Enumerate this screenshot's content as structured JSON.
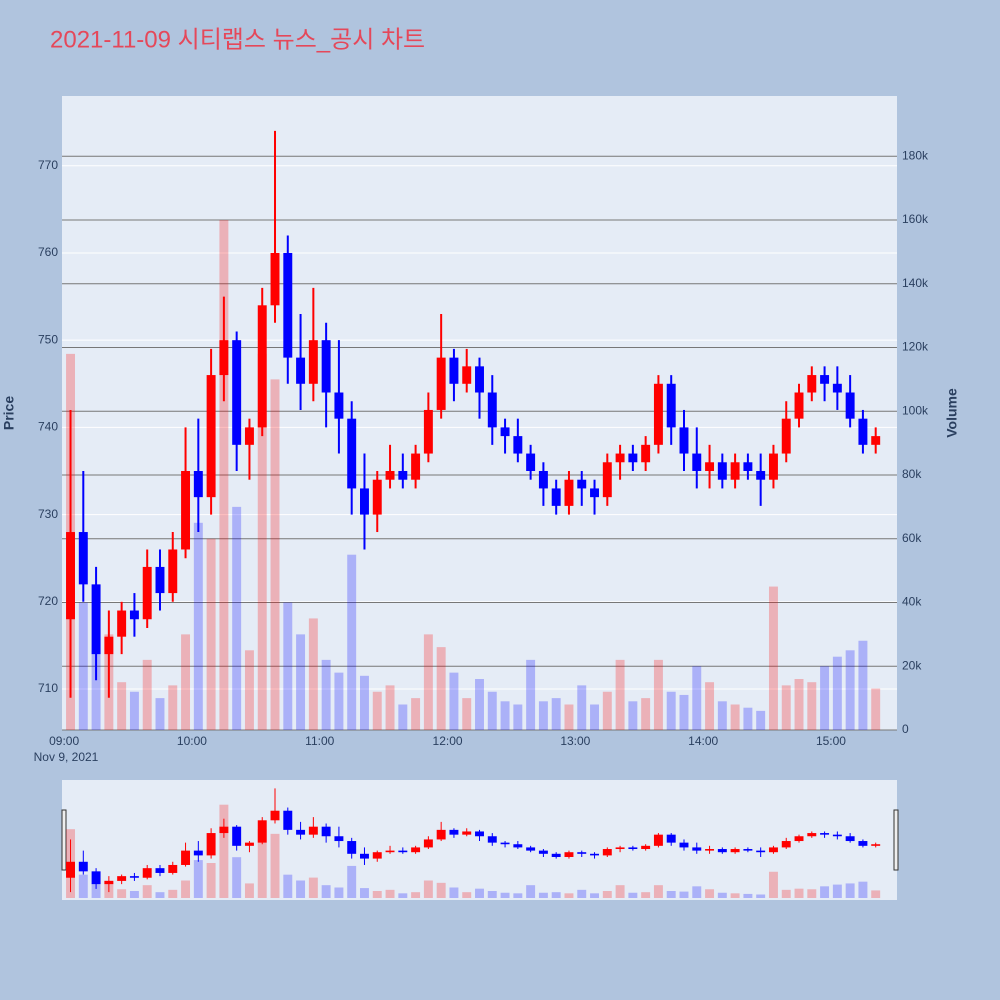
{
  "chart_data": {
    "type": "candlestick",
    "title": "2021-11-09 시티랩스 뉴스_공시 차트",
    "title_color": "#e5485a",
    "y_title": "Price",
    "y2_title": "Volume",
    "x_date_label": "Nov 9, 2021",
    "xlim": [
      "08:59",
      "15:31"
    ],
    "xticks": [
      "09:00",
      "10:00",
      "11:00",
      "12:00",
      "13:00",
      "14:00",
      "15:00"
    ],
    "ylim": [
      705.3,
      778.0
    ],
    "yticks": [
      710,
      720,
      730,
      740,
      750,
      760,
      770
    ],
    "y2lim": [
      0,
      198900
    ],
    "y2ticks": [
      0,
      {
        "value": 20000,
        "label": "20k"
      },
      {
        "value": 40000,
        "label": "40k"
      },
      {
        "value": 60000,
        "label": "60k"
      },
      {
        "value": 80000,
        "label": "80k"
      },
      {
        "value": 100000,
        "label": "100k"
      },
      {
        "value": 120000,
        "label": "120k"
      },
      {
        "value": 140000,
        "label": "140k"
      },
      {
        "value": 160000,
        "label": "160k"
      },
      {
        "value": 180000,
        "label": "180k"
      }
    ],
    "increasing_color": "#ff0000",
    "decreasing_color": "#0000ff",
    "range_slider": true,
    "x": [
      "09:00",
      "09:06",
      "09:12",
      "09:18",
      "09:24",
      "09:30",
      "09:36",
      "09:42",
      "09:48",
      "09:54",
      "10:00",
      "10:06",
      "10:12",
      "10:18",
      "10:24",
      "10:30",
      "10:36",
      "10:42",
      "10:48",
      "10:54",
      "11:00",
      "11:06",
      "11:12",
      "11:18",
      "11:24",
      "11:30",
      "11:36",
      "11:42",
      "11:48",
      "11:54",
      "12:00",
      "12:06",
      "12:12",
      "12:18",
      "12:24",
      "12:30",
      "12:36",
      "12:42",
      "12:48",
      "12:54",
      "13:00",
      "13:06",
      "13:12",
      "13:18",
      "13:24",
      "13:30",
      "13:36",
      "13:42",
      "13:48",
      "13:54",
      "14:00",
      "14:06",
      "14:12",
      "14:18",
      "14:24",
      "14:30",
      "14:36",
      "14:42",
      "14:48",
      "14:54",
      "15:00",
      "15:06",
      "15:12",
      "15:18"
    ],
    "open": [
      718,
      728,
      722,
      714,
      716,
      719,
      718,
      724,
      721,
      726,
      735,
      732,
      746,
      750,
      738,
      740,
      754,
      760,
      748,
      745,
      750,
      744,
      741,
      733,
      730,
      734,
      735,
      734,
      737,
      742,
      748,
      745,
      747,
      744,
      740,
      739,
      737,
      735,
      733,
      731,
      734,
      733,
      732,
      736,
      737,
      736,
      738,
      745,
      740,
      737,
      735,
      736,
      734,
      736,
      735,
      734,
      737,
      741,
      744,
      746,
      745,
      744,
      741,
      738
    ],
    "high": [
      742,
      735,
      724,
      719,
      720,
      721,
      726,
      726,
      728,
      740,
      741,
      749,
      755,
      751,
      741,
      756,
      774,
      762,
      753,
      756,
      752,
      750,
      743,
      737,
      735,
      738,
      737,
      738,
      744,
      753,
      749,
      749,
      748,
      746,
      741,
      741,
      738,
      736,
      734,
      735,
      735,
      734,
      737,
      738,
      738,
      739,
      746,
      746,
      742,
      740,
      738,
      737,
      737,
      737,
      737,
      738,
      743,
      745,
      747,
      747,
      747,
      746,
      742,
      740
    ],
    "low": [
      709,
      720,
      711,
      709,
      714,
      716,
      717,
      719,
      720,
      725,
      728,
      730,
      743,
      735,
      734,
      739,
      752,
      745,
      742,
      743,
      740,
      737,
      730,
      726,
      728,
      733,
      733,
      733,
      736,
      741,
      743,
      744,
      741,
      738,
      737,
      736,
      734,
      731,
      730,
      730,
      731,
      730,
      731,
      734,
      735,
      735,
      737,
      738,
      735,
      733,
      733,
      733,
      733,
      734,
      731,
      733,
      736,
      740,
      743,
      743,
      742,
      740,
      737,
      737
    ],
    "close": [
      728,
      722,
      714,
      716,
      719,
      718,
      724,
      721,
      726,
      735,
      732,
      746,
      750,
      738,
      740,
      754,
      760,
      748,
      745,
      750,
      744,
      741,
      733,
      730,
      734,
      735,
      734,
      737,
      742,
      748,
      745,
      747,
      744,
      740,
      739,
      737,
      735,
      733,
      731,
      734,
      733,
      732,
      736,
      737,
      736,
      738,
      745,
      740,
      737,
      735,
      736,
      734,
      736,
      735,
      734,
      737,
      741,
      744,
      746,
      745,
      744,
      741,
      738,
      739
    ],
    "volume": [
      118000,
      40000,
      25000,
      30000,
      15000,
      12000,
      22000,
      10000,
      14000,
      30000,
      65000,
      60000,
      160000,
      70000,
      25000,
      118000,
      110000,
      40000,
      30000,
      35000,
      22000,
      18000,
      55000,
      17000,
      12000,
      14000,
      8000,
      10000,
      30000,
      26000,
      18000,
      10000,
      16000,
      12000,
      9000,
      8000,
      22000,
      9000,
      10000,
      8000,
      14000,
      8000,
      12000,
      22000,
      9000,
      10000,
      22000,
      12000,
      11000,
      20000,
      15000,
      9000,
      8000,
      7000,
      6000,
      45000,
      14000,
      16000,
      15000,
      20000,
      23000,
      25000,
      28000,
      13000
    ]
  }
}
